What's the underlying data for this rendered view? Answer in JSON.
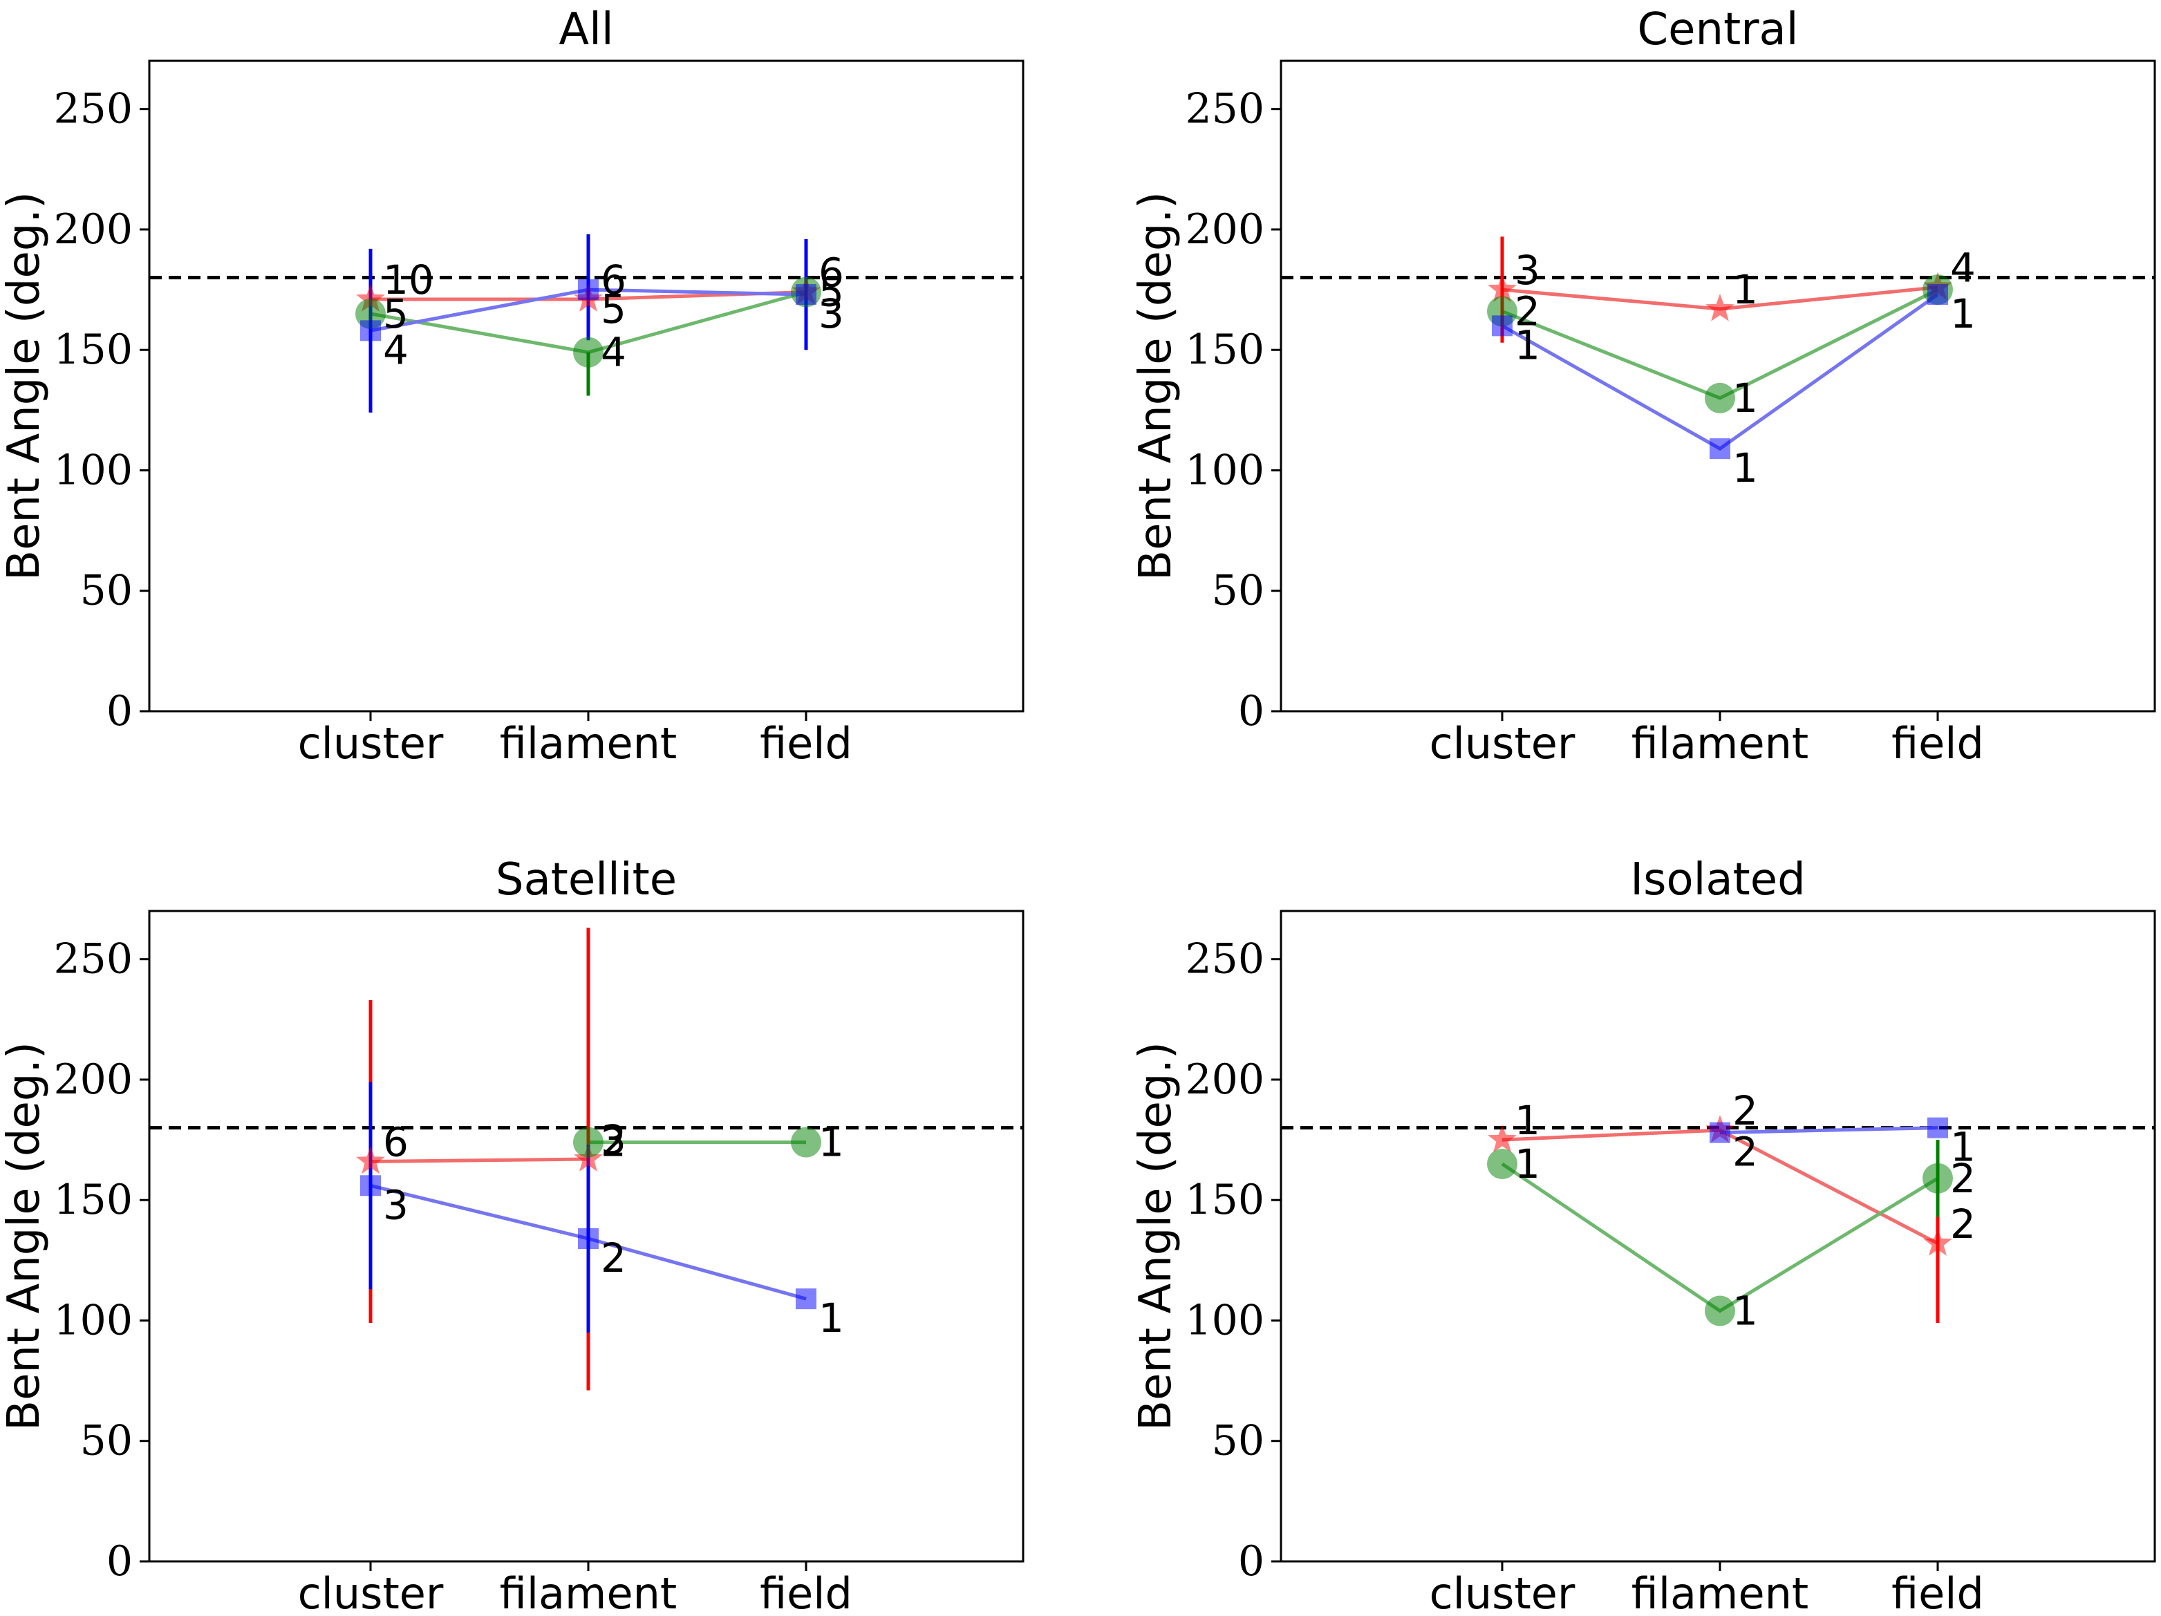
{
  "chart_data": [
    {
      "type": "line",
      "title": "All",
      "ylabel": "Bent Angle (deg.)",
      "categories": [
        "cluster",
        "filament",
        "field"
      ],
      "ylim": [
        0,
        270
      ],
      "yticks": [
        0,
        50,
        100,
        150,
        200,
        250
      ],
      "hline": 180,
      "series": [
        {
          "color": "#ff0000",
          "line_color": "#f26d6d",
          "marker": "star",
          "values": [
            171,
            171,
            174
          ],
          "err_low": [
            171,
            171,
            174
          ],
          "err_high": [
            171,
            171,
            174
          ],
          "labels": [
            "10",
            "6",
            "6"
          ]
        },
        {
          "color": "#008000",
          "line_color": "#6db86d",
          "marker": "circle",
          "values": [
            165,
            149,
            174
          ],
          "err_low": [
            165,
            131,
            174
          ],
          "err_high": [
            165,
            149,
            174
          ],
          "labels": [
            "5",
            "4",
            "5"
          ]
        },
        {
          "color": "#0000ff",
          "line_color": "#7575f2",
          "marker": "square",
          "values": [
            158,
            175,
            173
          ],
          "err_low": [
            124,
            154,
            150
          ],
          "err_high": [
            192,
            198,
            196
          ],
          "labels": [
            "4",
            "5",
            "3"
          ]
        }
      ]
    },
    {
      "type": "line",
      "title": "Central",
      "ylabel": "Bent Angle (deg.)",
      "categories": [
        "cluster",
        "filament",
        "field"
      ],
      "ylim": [
        0,
        270
      ],
      "yticks": [
        0,
        50,
        100,
        150,
        200,
        250
      ],
      "hline": 180,
      "series": [
        {
          "color": "#ff0000",
          "line_color": "#f26d6d",
          "marker": "star",
          "values": [
            175,
            167,
            176
          ],
          "err_low": [
            153,
            167,
            176
          ],
          "err_high": [
            197,
            167,
            176
          ],
          "labels": [
            "3",
            "1",
            "4"
          ]
        },
        {
          "color": "#008000",
          "line_color": "#6db86d",
          "marker": "circle",
          "values": [
            166,
            130,
            175
          ],
          "err_low": [
            166,
            130,
            175
          ],
          "err_high": [
            166,
            130,
            175
          ],
          "labels": [
            "2",
            "1",
            ""
          ]
        },
        {
          "color": "#0000ff",
          "line_color": "#7575f2",
          "marker": "square",
          "values": [
            160,
            109,
            173
          ],
          "err_low": [
            160,
            109,
            173
          ],
          "err_high": [
            160,
            109,
            173
          ],
          "labels": [
            "1",
            "1",
            "1"
          ]
        }
      ]
    },
    {
      "type": "line",
      "title": "Satellite",
      "ylabel": "Bent Angle (deg.)",
      "categories": [
        "cluster",
        "filament",
        "field"
      ],
      "ylim": [
        0,
        270
      ],
      "yticks": [
        0,
        50,
        100,
        150,
        200,
        250
      ],
      "hline": 180,
      "series": [
        {
          "color": "#ff0000",
          "line_color": "#f26d6d",
          "marker": "star",
          "values": [
            166,
            167,
            null
          ],
          "err_low": [
            99,
            71,
            null
          ],
          "err_high": [
            233,
            263,
            null
          ],
          "labels": [
            "6",
            "3",
            ""
          ]
        },
        {
          "color": "#008000",
          "line_color": "#6db86d",
          "marker": "circle",
          "values": [
            null,
            174,
            174
          ],
          "err_low": [
            null,
            174,
            174
          ],
          "err_high": [
            null,
            174,
            174
          ],
          "labels": [
            "",
            "2",
            "1"
          ]
        },
        {
          "color": "#0000ff",
          "line_color": "#7575f2",
          "marker": "square",
          "values": [
            156,
            134,
            109
          ],
          "err_low": [
            113,
            95,
            109
          ],
          "err_high": [
            199,
            173,
            109
          ],
          "labels": [
            "3",
            "2",
            "1"
          ]
        }
      ]
    },
    {
      "type": "line",
      "title": "Isolated",
      "ylabel": "Bent Angle (deg.)",
      "categories": [
        "cluster",
        "filament",
        "field"
      ],
      "ylim": [
        0,
        270
      ],
      "yticks": [
        0,
        50,
        100,
        150,
        200,
        250
      ],
      "hline": 180,
      "series": [
        {
          "color": "#ff0000",
          "line_color": "#f26d6d",
          "marker": "star",
          "values": [
            175,
            179,
            132
          ],
          "err_low": [
            175,
            179,
            99
          ],
          "err_high": [
            175,
            179,
            165
          ],
          "labels": [
            "1",
            "2",
            "2"
          ]
        },
        {
          "color": "#008000",
          "line_color": "#6db86d",
          "marker": "circle",
          "values": [
            165,
            104,
            159
          ],
          "err_low": [
            165,
            104,
            143
          ],
          "err_high": [
            165,
            104,
            175
          ],
          "labels": [
            "1",
            "1",
            "2"
          ]
        },
        {
          "color": "#0000ff",
          "line_color": "#7575f2",
          "marker": "square",
          "values": [
            null,
            178,
            180
          ],
          "err_low": [
            null,
            178,
            180
          ],
          "err_high": [
            null,
            178,
            180
          ],
          "labels": [
            "",
            "2",
            "1"
          ]
        }
      ]
    }
  ]
}
